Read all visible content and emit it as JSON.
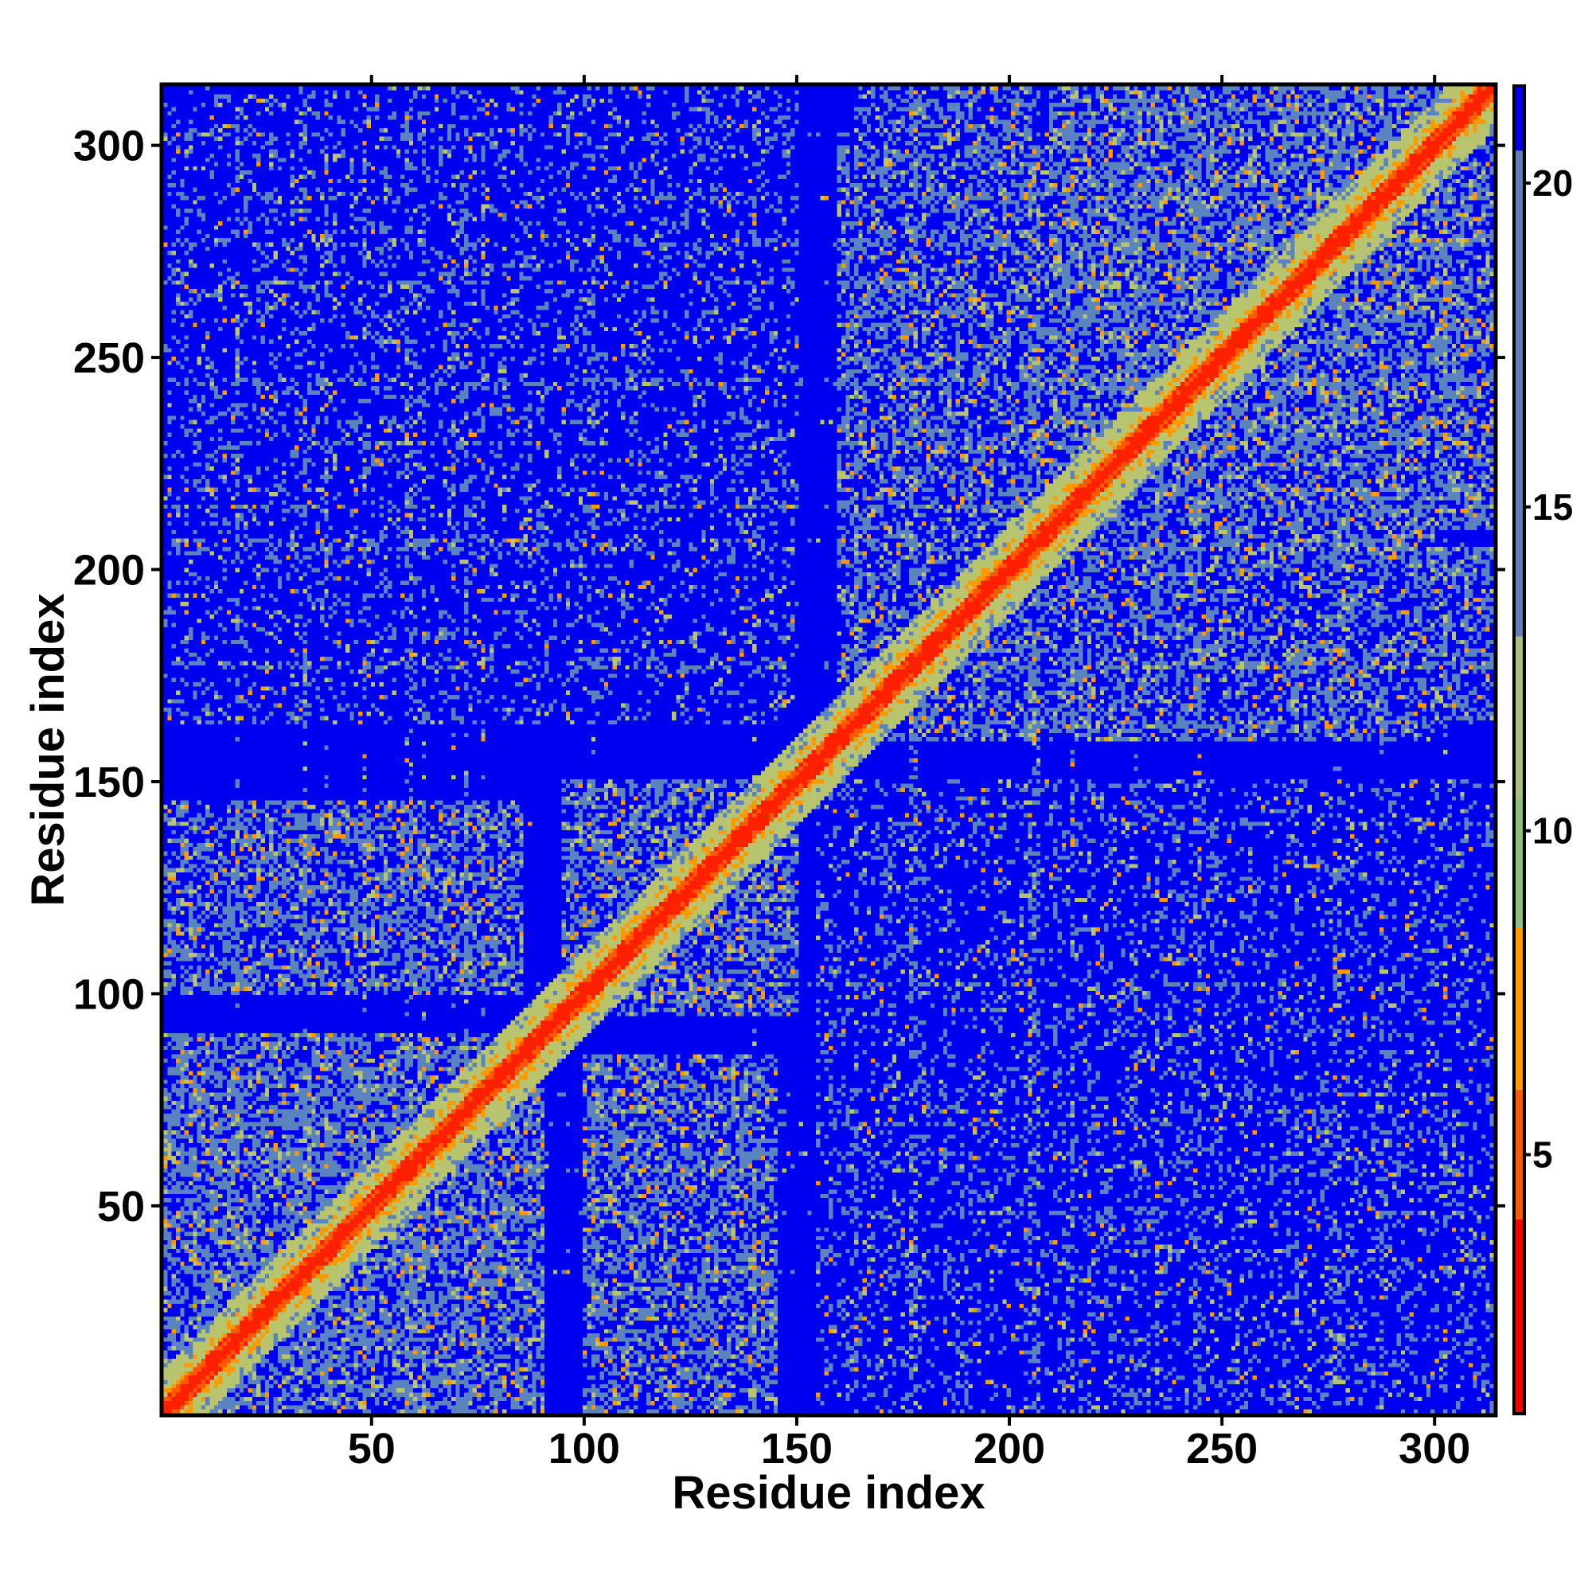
{
  "chart_data": {
    "type": "heatmap",
    "title": "",
    "xlabel": "Residue index",
    "ylabel": "Residue index",
    "n_residues": 314,
    "xlim": [
      1,
      314
    ],
    "ylim": [
      1,
      314
    ],
    "x_ticks": [
      50,
      100,
      150,
      200,
      250,
      300
    ],
    "y_ticks": [
      50,
      100,
      150,
      200,
      250,
      300
    ],
    "x_tick_labels": [
      "50",
      "100",
      "150",
      "200",
      "250",
      "300"
    ],
    "y_tick_labels": [
      "50",
      "100",
      "150",
      "200",
      "250",
      "300"
    ],
    "colorbar": {
      "range": [
        1,
        21.5
      ],
      "ticks": [
        5,
        10,
        15,
        20
      ],
      "tick_labels": [
        "5",
        "10",
        "15",
        "20"
      ],
      "colors": [
        {
          "from": 1,
          "to": 4,
          "color": "#ff0000"
        },
        {
          "from": 4,
          "to": 6,
          "color": "#ff5a00"
        },
        {
          "from": 6,
          "to": 8.5,
          "color": "#ff9900"
        },
        {
          "from": 8.5,
          "to": 10.5,
          "color": "#8ec07a"
        },
        {
          "from": 10.5,
          "to": 13,
          "color": "#a8c080"
        },
        {
          "from": 13,
          "to": 20.5,
          "color": "#6080b8"
        },
        {
          "from": 20.5,
          "to": 21.5,
          "color": "#0000f0"
        }
      ]
    },
    "background_color": "#0000f0",
    "contact_color": "#5b84bf",
    "near_color": "#b9c46f",
    "close_color": "#ff9900",
    "diagonal_color": "#ff2000",
    "contact_regions": [
      {
        "x": [
          1,
          90
        ],
        "y": [
          1,
          90
        ],
        "strength": 0.55
      },
      {
        "x": [
          1,
          85
        ],
        "y": [
          100,
          145
        ],
        "strength": 0.5
      },
      {
        "x": [
          100,
          145
        ],
        "y": [
          1,
          85
        ],
        "strength": 0.5
      },
      {
        "x": [
          95,
          150
        ],
        "y": [
          95,
          150
        ],
        "strength": 0.5
      },
      {
        "x": [
          160,
          210
        ],
        "y": [
          160,
          300
        ],
        "strength": 0.45
      },
      {
        "x": [
          160,
          300
        ],
        "y": [
          160,
          210
        ],
        "strength": 0.45
      },
      {
        "x": [
          210,
          314
        ],
        "y": [
          210,
          314
        ],
        "strength": 0.55
      },
      {
        "x": [
          215,
          314
        ],
        "y": [
          165,
          205
        ],
        "strength": 0.45
      },
      {
        "x": [
          165,
          205
        ],
        "y": [
          215,
          314
        ],
        "strength": 0.45
      }
    ],
    "sparse_regions": [
      {
        "x": [
          1,
          150
        ],
        "y": [
          165,
          314
        ],
        "density": 0.18
      },
      {
        "x": [
          155,
          314
        ],
        "y": [
          1,
          150
        ],
        "density": 0.18
      }
    ]
  }
}
